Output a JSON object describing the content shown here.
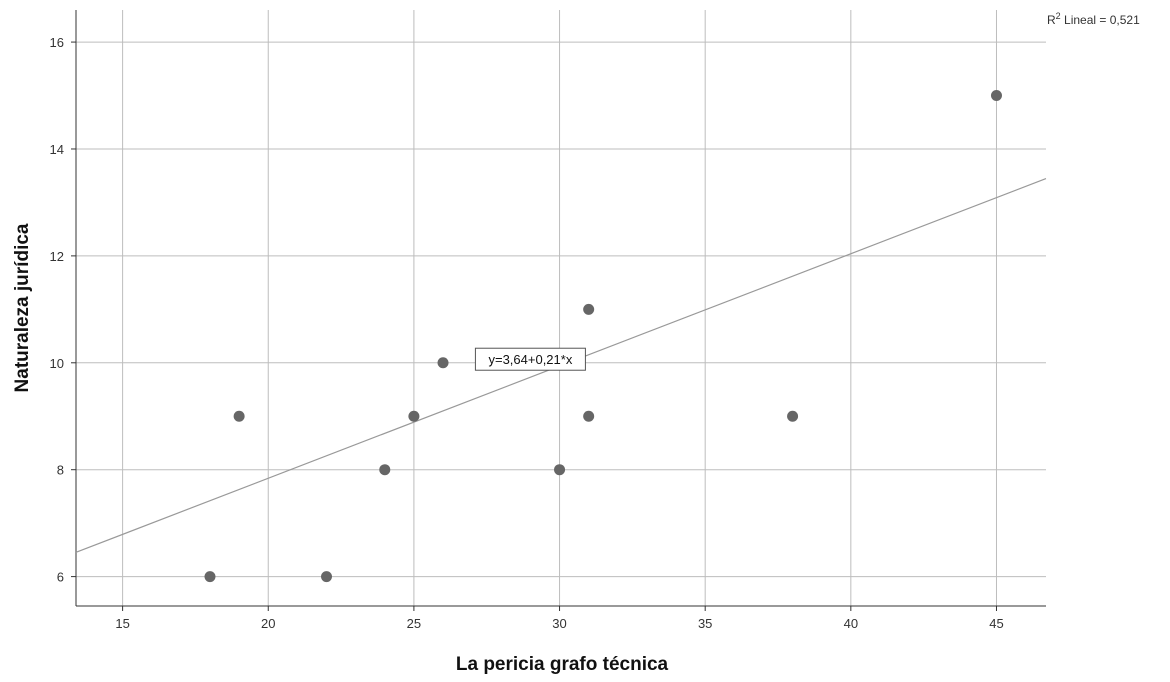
{
  "chart_data": {
    "type": "scatter",
    "xlabel": "La pericia grafo técnica",
    "ylabel": "Naturaleza jurídica",
    "xlim": [
      13.4,
      46.7
    ],
    "ylim": [
      5.45,
      16.6
    ],
    "xticks": [
      15,
      20,
      25,
      30,
      35,
      40,
      45
    ],
    "yticks": [
      6,
      8,
      10,
      12,
      14,
      16
    ],
    "grid": true,
    "legend": "none",
    "marker_color": "#666666",
    "fit_line_color": "#999999",
    "points": [
      {
        "x": 18,
        "y": 6
      },
      {
        "x": 19,
        "y": 9
      },
      {
        "x": 22,
        "y": 6
      },
      {
        "x": 24,
        "y": 8
      },
      {
        "x": 25,
        "y": 9
      },
      {
        "x": 26,
        "y": 10
      },
      {
        "x": 30,
        "y": 8
      },
      {
        "x": 31,
        "y": 11
      },
      {
        "x": 31,
        "y": 9
      },
      {
        "x": 38,
        "y": 9
      },
      {
        "x": 45,
        "y": 15
      }
    ],
    "fit_line": {
      "intercept": 3.64,
      "slope": 0.21,
      "label": "y=3,64+0,21*x"
    },
    "r2_label": {
      "prefix": "R",
      "superscript": "2",
      "suffix": " Lineal = 0,521"
    }
  }
}
